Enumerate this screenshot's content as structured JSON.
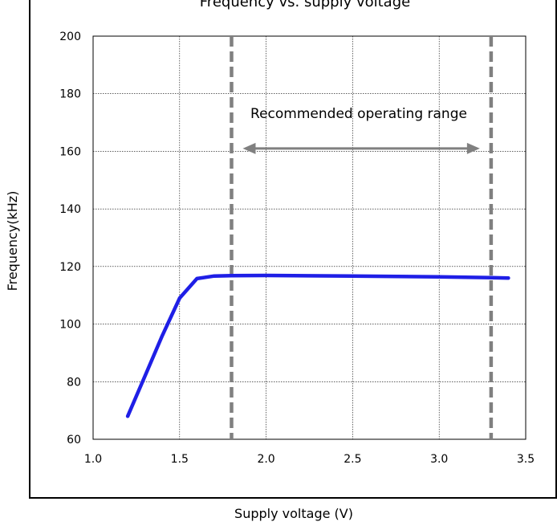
{
  "chart_data": {
    "type": "line",
    "title": "Frequency vs. supply voltage",
    "xlabel": "Supply voltage (V)",
    "ylabel": "Frequency(kHz)",
    "xlim": [
      1.0,
      3.5
    ],
    "ylim": [
      60,
      200
    ],
    "x_ticks": [
      "1.0",
      "1.5",
      "2.0",
      "2.5",
      "3.0",
      "3.5"
    ],
    "y_ticks": [
      "60",
      "80",
      "100",
      "120",
      "140",
      "160",
      "180",
      "200"
    ],
    "grid": true,
    "series": [
      {
        "color": "#1f1fe6",
        "x": [
          1.2,
          1.3,
          1.4,
          1.5,
          1.6,
          1.7,
          1.8,
          2.0,
          2.5,
          3.0,
          3.3,
          3.4
        ],
        "y": [
          68,
          82,
          96,
          109,
          115.8,
          116.7,
          116.8,
          116.9,
          116.7,
          116.4,
          116.1,
          116.0
        ]
      }
    ],
    "reference_lines": [
      {
        "x": 1.8,
        "color": "#808080"
      },
      {
        "x": 3.3,
        "color": "#808080"
      }
    ],
    "annotation": {
      "text": "Recommended operating range",
      "arrow_from": 1.8,
      "arrow_to": 3.3,
      "arrow_y": 161,
      "color": "#808080"
    }
  }
}
